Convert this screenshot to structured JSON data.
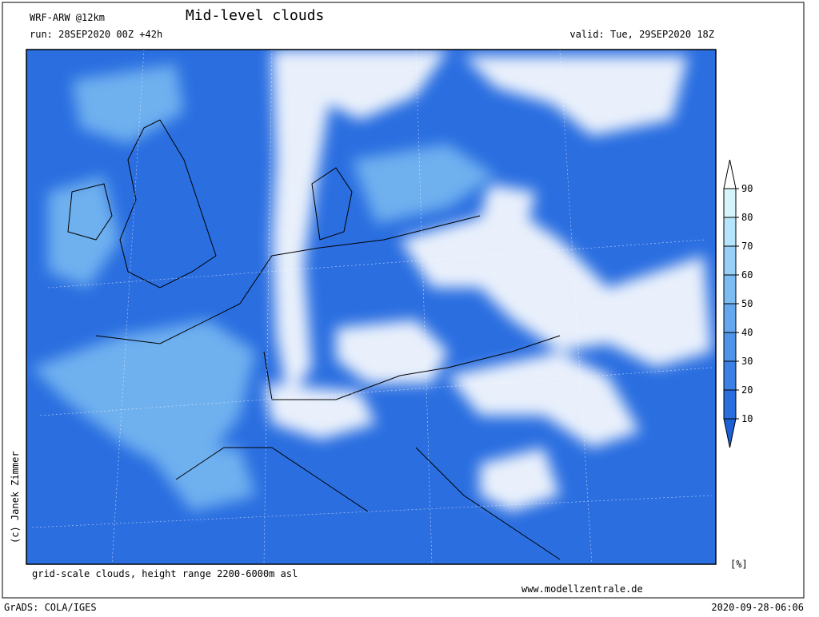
{
  "header": {
    "model": "WRF-ARW @12km",
    "title": "Mid-level clouds",
    "run": "run: 28SEP2020 00Z +42h",
    "valid": "valid: Tue, 29SEP2020 18Z"
  },
  "footer": {
    "description": "grid-scale clouds, height range 2200-6000m asl",
    "website": "www.modellzentrale.de",
    "software": "GrADS: COLA/IGES",
    "timestamp": "2020-09-28-06:06",
    "copyright": "(c) Janek Zimmer"
  },
  "legend": {
    "unit": "[%]",
    "levels": [
      10,
      20,
      30,
      40,
      50,
      60,
      70,
      80,
      90
    ],
    "colors": [
      "#1c60d8",
      "#2a6ee0",
      "#3c80e6",
      "#5094ea",
      "#66a8ef",
      "#7cbcf2",
      "#98d0f7",
      "#b6e4fa",
      "#d6f4fc",
      "#ffffff"
    ]
  }
}
